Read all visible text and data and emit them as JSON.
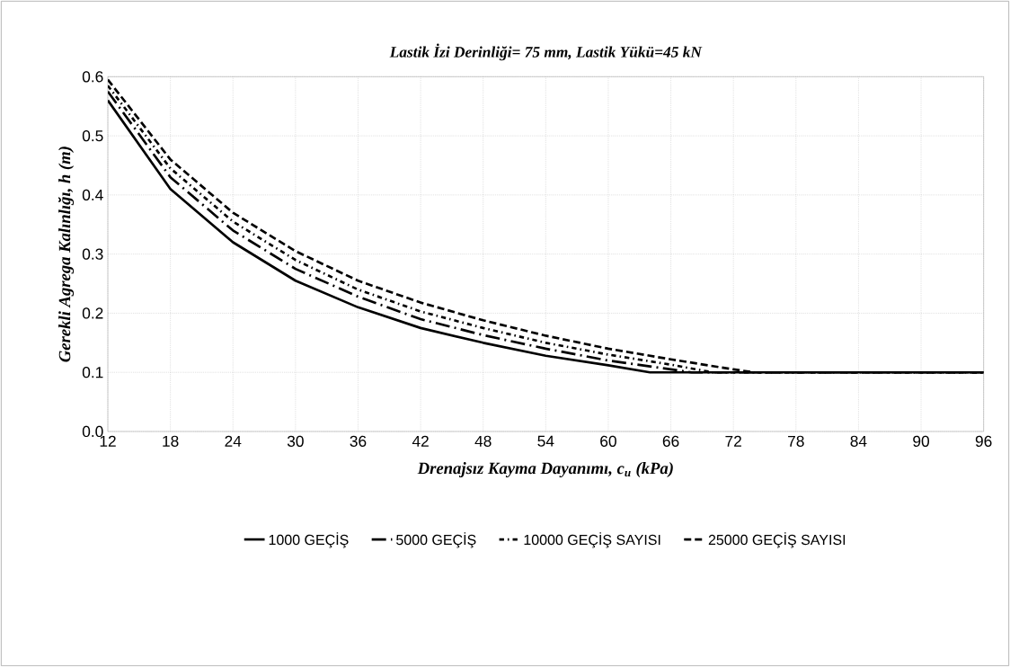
{
  "chart_data": {
    "type": "line",
    "title": "Lastik İzi Derinliği= 75 mm, Lastik Yükü=45 kN",
    "xlabel": "Drenajsız Kayma Dayanımı, c$_{u}$ (kPa)",
    "ylabel": "Gerekli Agrega Kalınlığı, h (m)",
    "xlim": [
      12,
      96
    ],
    "xticks": [
      12,
      18,
      24,
      30,
      36,
      42,
      48,
      54,
      60,
      66,
      72,
      78,
      84,
      90,
      96
    ],
    "ylim": [
      0,
      0.6
    ],
    "yticks": [
      {
        "value": 0,
        "label": "0.0"
      },
      {
        "value": 0.1,
        "label": "0.1"
      },
      {
        "value": 0.2,
        "label": "0.2"
      },
      {
        "value": 0.3,
        "label": "0.3"
      },
      {
        "value": 0.4,
        "label": "0.4"
      },
      {
        "value": 0.5,
        "label": "0.5"
      },
      {
        "value": 0.6,
        "label": "0.6"
      }
    ],
    "grid": true,
    "legend": "bottom",
    "marker": "none",
    "series": [
      {
        "name": "1000 GEÇİŞ",
        "color": "#000000",
        "line_style": "solid",
        "x": [
          12,
          18,
          24,
          30,
          36,
          42,
          48,
          54,
          60,
          64,
          96
        ],
        "values": [
          0.56,
          0.41,
          0.32,
          0.255,
          0.21,
          0.175,
          0.15,
          0.128,
          0.112,
          0.1,
          0.1
        ]
      },
      {
        "name": "5000 GEÇİŞ",
        "color": "#000000",
        "line_style": "longdashdot",
        "x": [
          12,
          18,
          24,
          30,
          36,
          42,
          48,
          54,
          60,
          66,
          68,
          96
        ],
        "values": [
          0.575,
          0.43,
          0.34,
          0.275,
          0.228,
          0.19,
          0.163,
          0.14,
          0.12,
          0.105,
          0.1,
          0.1
        ]
      },
      {
        "name": "10000 GEÇİŞ SAYISI",
        "color": "#000000",
        "line_style": "dashdot",
        "x": [
          12,
          18,
          24,
          30,
          36,
          42,
          48,
          54,
          60,
          66,
          70,
          96
        ],
        "values": [
          0.585,
          0.445,
          0.355,
          0.29,
          0.24,
          0.203,
          0.175,
          0.15,
          0.13,
          0.113,
          0.1,
          0.1
        ]
      },
      {
        "name": "25000 GEÇİŞ SAYISI",
        "color": "#000000",
        "line_style": "dashed",
        "x": [
          12,
          18,
          24,
          30,
          36,
          42,
          48,
          54,
          60,
          66,
          72,
          74,
          96
        ],
        "values": [
          0.595,
          0.46,
          0.37,
          0.305,
          0.255,
          0.218,
          0.188,
          0.162,
          0.14,
          0.122,
          0.105,
          0.1,
          0.1
        ]
      }
    ]
  }
}
